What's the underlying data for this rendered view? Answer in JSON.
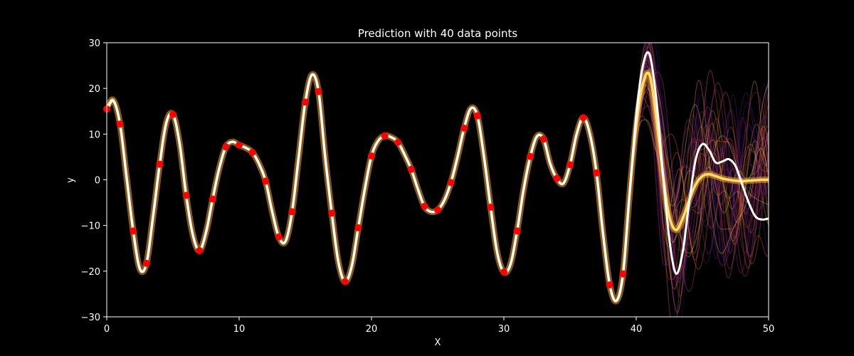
{
  "chart_data": {
    "type": "line",
    "title": "Prediction with 40 data points",
    "xlabel": "X",
    "ylabel": "y",
    "xlim": [
      0,
      50
    ],
    "ylim": [
      -30,
      30
    ],
    "xticks": [
      0,
      10,
      20,
      30,
      40,
      50
    ],
    "yticks": [
      -30,
      -20,
      -10,
      0,
      10,
      20,
      30
    ],
    "grid": false,
    "background": "#000000",
    "true_function": {
      "color": "#ffffff",
      "points": [
        [
          0,
          15.5
        ],
        [
          0.5,
          17.2
        ],
        [
          1,
          12.2
        ],
        [
          1.5,
          0.5
        ],
        [
          2,
          -11.2
        ],
        [
          2.5,
          -19.5
        ],
        [
          3,
          -18.3
        ],
        [
          3.5,
          -8.0
        ],
        [
          4,
          3.4
        ],
        [
          4.5,
          12.5
        ],
        [
          5,
          14.3
        ],
        [
          5.5,
          8.0
        ],
        [
          6,
          -3.4
        ],
        [
          6.5,
          -12.0
        ],
        [
          7,
          -15.5
        ],
        [
          7.5,
          -11.5
        ],
        [
          8,
          -4.2
        ],
        [
          8.5,
          2.5
        ],
        [
          9,
          7.2
        ],
        [
          9.5,
          8.3
        ],
        [
          10,
          7.6
        ],
        [
          10.5,
          7.0
        ],
        [
          11,
          6.0
        ],
        [
          11.5,
          3.5
        ],
        [
          12,
          -0.3
        ],
        [
          12.5,
          -7.0
        ],
        [
          13,
          -12.5
        ],
        [
          13.5,
          -13.5
        ],
        [
          14,
          -7.0
        ],
        [
          14.5,
          5.0
        ],
        [
          15,
          17.0
        ],
        [
          15.5,
          23.0
        ],
        [
          16,
          19.3
        ],
        [
          16.5,
          5.0
        ],
        [
          17,
          -7.3
        ],
        [
          17.5,
          -18.0
        ],
        [
          18,
          -22.3
        ],
        [
          18.5,
          -19.0
        ],
        [
          19,
          -10.5
        ],
        [
          19.5,
          -2.0
        ],
        [
          20,
          5.2
        ],
        [
          20.5,
          8.5
        ],
        [
          21,
          9.6
        ],
        [
          21.5,
          9.3
        ],
        [
          22,
          8.2
        ],
        [
          22.5,
          5.5
        ],
        [
          23,
          2.3
        ],
        [
          23.5,
          -2.0
        ],
        [
          24,
          -5.8
        ],
        [
          24.5,
          -7.0
        ],
        [
          25,
          -6.6
        ],
        [
          25.5,
          -4.5
        ],
        [
          26,
          -0.6
        ],
        [
          26.5,
          5.0
        ],
        [
          27,
          11.3
        ],
        [
          27.5,
          15.6
        ],
        [
          28,
          14.0
        ],
        [
          28.5,
          5.0
        ],
        [
          29,
          -6.0
        ],
        [
          29.5,
          -16.0
        ],
        [
          30,
          -20.2
        ],
        [
          30.5,
          -18.5
        ],
        [
          31,
          -11.2
        ],
        [
          31.5,
          -2.0
        ],
        [
          32,
          5.1
        ],
        [
          32.5,
          9.5
        ],
        [
          33,
          8.9
        ],
        [
          33.5,
          3.5
        ],
        [
          34,
          0.3
        ],
        [
          34.5,
          -0.8
        ],
        [
          35,
          3.3
        ],
        [
          35.5,
          10.0
        ],
        [
          36,
          13.6
        ],
        [
          36.5,
          10.0
        ],
        [
          37,
          1.5
        ],
        [
          37.5,
          -12.0
        ],
        [
          38,
          -23.0
        ],
        [
          38.5,
          -26.5
        ],
        [
          39,
          -20.6
        ],
        [
          39.5,
          -3.0
        ],
        [
          40,
          14.0
        ],
        [
          40.5,
          25.0
        ],
        [
          41,
          27.5
        ],
        [
          41.5,
          18.0
        ],
        [
          42,
          2.0
        ],
        [
          42.5,
          -13.0
        ],
        [
          43,
          -20.5
        ],
        [
          43.5,
          -16.0
        ],
        [
          44,
          -5.0
        ],
        [
          44.5,
          4.5
        ],
        [
          45,
          7.8
        ],
        [
          45.5,
          6.5
        ],
        [
          46,
          3.8
        ],
        [
          46.5,
          4.0
        ],
        [
          47,
          4.5
        ],
        [
          47.5,
          3.0
        ],
        [
          48,
          -1.0
        ],
        [
          48.5,
          -5.0
        ],
        [
          49,
          -8.0
        ],
        [
          49.5,
          -8.7
        ],
        [
          50,
          -8.5
        ]
      ]
    },
    "prediction_mean": {
      "color": "#ffe066",
      "points": [
        [
          0,
          16.0
        ],
        [
          0.5,
          17.4
        ],
        [
          1,
          12.2
        ],
        [
          1.5,
          0.5
        ],
        [
          2,
          -11.2
        ],
        [
          2.5,
          -19.5
        ],
        [
          3,
          -18.3
        ],
        [
          3.5,
          -8.0
        ],
        [
          4,
          3.4
        ],
        [
          4.5,
          12.5
        ],
        [
          5,
          14.3
        ],
        [
          5.5,
          8.0
        ],
        [
          6,
          -3.4
        ],
        [
          6.5,
          -12.0
        ],
        [
          7,
          -15.5
        ],
        [
          7.5,
          -11.5
        ],
        [
          8,
          -4.2
        ],
        [
          8.5,
          2.5
        ],
        [
          9,
          7.2
        ],
        [
          9.5,
          8.3
        ],
        [
          10,
          7.6
        ],
        [
          10.5,
          7.0
        ],
        [
          11,
          6.0
        ],
        [
          11.5,
          3.5
        ],
        [
          12,
          -0.3
        ],
        [
          12.5,
          -7.0
        ],
        [
          13,
          -12.5
        ],
        [
          13.5,
          -13.5
        ],
        [
          14,
          -7.0
        ],
        [
          14.5,
          5.0
        ],
        [
          15,
          17.0
        ],
        [
          15.5,
          23.0
        ],
        [
          16,
          19.3
        ],
        [
          16.5,
          5.0
        ],
        [
          17,
          -7.3
        ],
        [
          17.5,
          -18.0
        ],
        [
          18,
          -22.3
        ],
        [
          18.5,
          -19.0
        ],
        [
          19,
          -10.5
        ],
        [
          19.5,
          -2.0
        ],
        [
          20,
          5.2
        ],
        [
          20.5,
          8.5
        ],
        [
          21,
          9.6
        ],
        [
          21.5,
          9.3
        ],
        [
          22,
          8.2
        ],
        [
          22.5,
          5.5
        ],
        [
          23,
          2.3
        ],
        [
          23.5,
          -2.0
        ],
        [
          24,
          -5.8
        ],
        [
          24.5,
          -7.0
        ],
        [
          25,
          -6.6
        ],
        [
          25.5,
          -4.5
        ],
        [
          26,
          -0.6
        ],
        [
          26.5,
          5.0
        ],
        [
          27,
          11.3
        ],
        [
          27.5,
          15.6
        ],
        [
          28,
          14.0
        ],
        [
          28.5,
          5.0
        ],
        [
          29,
          -6.0
        ],
        [
          29.5,
          -16.0
        ],
        [
          30,
          -20.2
        ],
        [
          30.5,
          -18.5
        ],
        [
          31,
          -11.2
        ],
        [
          31.5,
          -2.0
        ],
        [
          32,
          5.1
        ],
        [
          32.5,
          9.5
        ],
        [
          33,
          8.9
        ],
        [
          33.5,
          3.5
        ],
        [
          34,
          0.3
        ],
        [
          34.5,
          -0.8
        ],
        [
          35,
          3.3
        ],
        [
          35.5,
          10.0
        ],
        [
          36,
          13.6
        ],
        [
          36.5,
          10.0
        ],
        [
          37,
          1.5
        ],
        [
          37.5,
          -12.0
        ],
        [
          38,
          -23.0
        ],
        [
          38.5,
          -26.5
        ],
        [
          39,
          -20.6
        ],
        [
          39.5,
          -3.0
        ],
        [
          40,
          12.0
        ],
        [
          40.5,
          21.0
        ],
        [
          41,
          23.0
        ],
        [
          41.5,
          14.0
        ],
        [
          42,
          1.5
        ],
        [
          42.5,
          -8.0
        ],
        [
          43,
          -11.0
        ],
        [
          43.5,
          -8.5
        ],
        [
          44,
          -4.5
        ],
        [
          44.5,
          -1.0
        ],
        [
          45,
          0.8
        ],
        [
          45.5,
          1.2
        ],
        [
          46,
          0.8
        ],
        [
          46.5,
          0.3
        ],
        [
          47,
          0.0
        ],
        [
          47.5,
          -0.2
        ],
        [
          48,
          -0.3
        ],
        [
          48.5,
          -0.2
        ],
        [
          49,
          -0.1
        ],
        [
          49.5,
          0.0
        ],
        [
          50,
          0.0
        ]
      ]
    },
    "posterior_samples": {
      "count": 40,
      "colormap": [
        "#1a0a3a",
        "#3b0f70",
        "#6a1b9a",
        "#a02c8e",
        "#d0467a",
        "#f06a3a",
        "#f9a03a",
        "#fde05a"
      ]
    },
    "observations": {
      "color": "#ff0000",
      "x": [
        0,
        1,
        2,
        3,
        4,
        5,
        6,
        7,
        8,
        9,
        10,
        11,
        12,
        13,
        14,
        15,
        16,
        17,
        18,
        19,
        20,
        21,
        22,
        23,
        24,
        25,
        26,
        27,
        28,
        29,
        30,
        31,
        32,
        33,
        34,
        35,
        36,
        37,
        38,
        39
      ],
      "y": [
        15.5,
        12.2,
        -11.2,
        -18.3,
        3.4,
        14.3,
        -3.4,
        -15.5,
        -4.2,
        7.2,
        7.6,
        6.0,
        -0.3,
        -12.5,
        -7.0,
        17.0,
        19.3,
        -7.3,
        -22.3,
        -10.5,
        5.2,
        9.6,
        8.2,
        2.3,
        -5.8,
        -6.6,
        -0.6,
        11.3,
        14.0,
        -6.0,
        -20.2,
        -11.2,
        5.1,
        8.9,
        0.3,
        3.3,
        13.6,
        1.5,
        -23.0,
        -20.6
      ]
    }
  }
}
